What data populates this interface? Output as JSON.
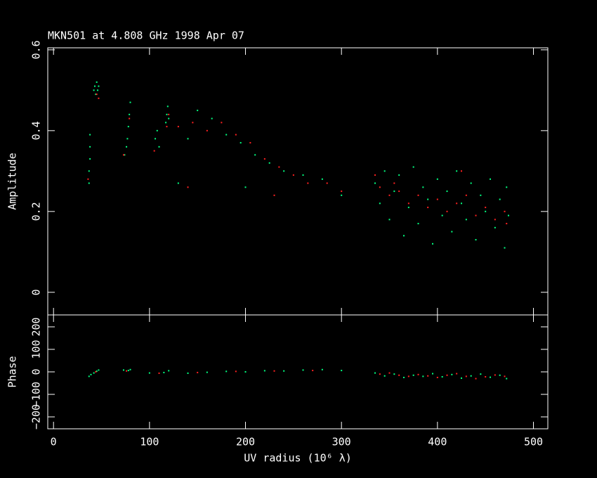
{
  "chart_data": [
    {
      "type": "scatter",
      "title": "MKN501 at 4.808 GHz 1998 Apr 07",
      "y_label": "Amplitude",
      "xlim": [
        -6,
        515
      ],
      "xticks": [
        0,
        100,
        200,
        300,
        400,
        500
      ],
      "ylim": [
        -0.056,
        0.605
      ],
      "yticks": [
        0,
        0.2,
        0.4,
        0.6
      ],
      "series": [
        {
          "color": "#00ff80",
          "x": [
            37,
            37,
            38,
            38,
            38,
            42,
            43,
            44,
            45,
            46,
            47,
            74,
            76,
            77,
            78,
            79,
            80,
            106,
            108,
            110,
            117,
            118,
            119,
            120,
            140,
            150,
            165,
            180,
            195,
            210,
            225,
            240,
            260,
            280,
            300,
            130,
            200,
            335,
            340,
            345,
            350,
            355,
            360,
            365,
            370,
            375,
            380,
            385,
            390,
            395,
            400,
            405,
            410,
            415,
            420,
            425,
            430,
            435,
            440,
            445,
            450,
            455,
            460,
            465,
            470,
            472,
            474
          ],
          "values": [
            0.27,
            0.3,
            0.33,
            0.36,
            0.39,
            0.5,
            0.51,
            0.49,
            0.52,
            0.5,
            0.51,
            0.34,
            0.36,
            0.38,
            0.41,
            0.44,
            0.47,
            0.38,
            0.4,
            0.36,
            0.42,
            0.44,
            0.46,
            0.43,
            0.38,
            0.45,
            0.43,
            0.39,
            0.37,
            0.34,
            0.32,
            0.3,
            0.29,
            0.28,
            0.24,
            0.27,
            0.26,
            0.27,
            0.22,
            0.3,
            0.18,
            0.25,
            0.29,
            0.14,
            0.21,
            0.31,
            0.17,
            0.26,
            0.23,
            0.12,
            0.28,
            0.19,
            0.25,
            0.15,
            0.3,
            0.22,
            0.18,
            0.27,
            0.13,
            0.24,
            0.2,
            0.28,
            0.16,
            0.23,
            0.11,
            0.26,
            0.19
          ]
        },
        {
          "color": "#ff2020",
          "x": [
            36,
            45,
            47,
            73,
            79,
            105,
            118,
            120,
            130,
            145,
            160,
            175,
            190,
            205,
            220,
            235,
            250,
            265,
            285,
            300,
            140,
            230,
            335,
            340,
            350,
            360,
            370,
            380,
            390,
            400,
            410,
            420,
            430,
            440,
            450,
            460,
            470,
            472,
            425,
            355
          ],
          "values": [
            0.28,
            0.49,
            0.48,
            0.34,
            0.43,
            0.35,
            0.41,
            0.44,
            0.41,
            0.42,
            0.4,
            0.42,
            0.39,
            0.37,
            0.33,
            0.31,
            0.29,
            0.27,
            0.27,
            0.25,
            0.26,
            0.24,
            0.29,
            0.26,
            0.24,
            0.25,
            0.22,
            0.24,
            0.21,
            0.23,
            0.2,
            0.22,
            0.24,
            0.19,
            0.21,
            0.18,
            0.2,
            0.17,
            0.3,
            0.27
          ]
        }
      ]
    },
    {
      "type": "scatter",
      "y_label": "Phase",
      "x_label": "UV radius  (10⁶ λ)",
      "xlim": [
        -6,
        515
      ],
      "xticks": [
        0,
        100,
        200,
        300,
        400,
        500
      ],
      "ylim": [
        -253,
        253
      ],
      "yticks": [
        {
          "value": -200,
          "label": "−200"
        },
        {
          "value": -100,
          "label": "−100"
        },
        0,
        100,
        200
      ],
      "series": [
        {
          "color": "#00ff80",
          "x": [
            37,
            39,
            42,
            45,
            47,
            73,
            78,
            80,
            100,
            115,
            120,
            140,
            160,
            180,
            200,
            220,
            240,
            260,
            280,
            300,
            335,
            345,
            355,
            365,
            375,
            385,
            395,
            405,
            415,
            425,
            435,
            445,
            455,
            465,
            472
          ],
          "values": [
            -20,
            -12,
            -5,
            3,
            8,
            8,
            6,
            10,
            -5,
            -3,
            5,
            -6,
            -2,
            2,
            0,
            5,
            4,
            8,
            10,
            6,
            -5,
            -18,
            -10,
            -25,
            -15,
            -20,
            -8,
            -22,
            -12,
            -28,
            -18,
            -10,
            -24,
            -15,
            -30
          ]
        },
        {
          "color": "#ff2020",
          "x": [
            44,
            76,
            110,
            150,
            190,
            230,
            270,
            340,
            350,
            360,
            370,
            380,
            390,
            400,
            410,
            420,
            430,
            440,
            450,
            460,
            470
          ],
          "values": [
            0,
            4,
            -6,
            -3,
            2,
            4,
            6,
            -10,
            -5,
            -15,
            -20,
            -12,
            -18,
            -25,
            -15,
            -8,
            -20,
            -30,
            -22,
            -14,
            -20
          ]
        }
      ]
    }
  ]
}
